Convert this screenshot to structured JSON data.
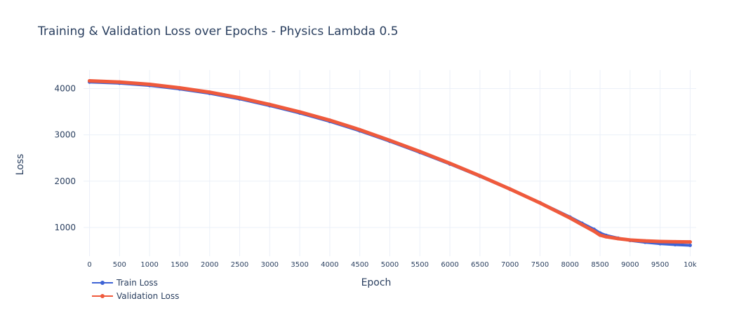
{
  "chart_data": {
    "type": "line",
    "title": "Training & Validation Loss over Epochs  - Physics Lambda 0.5",
    "xlabel": "Epoch",
    "ylabel": "Loss",
    "xlim": [
      -100,
      10100
    ],
    "ylim": [
      380,
      4400
    ],
    "x_ticks": [
      0,
      500,
      1000,
      1500,
      2000,
      2500,
      3000,
      3500,
      4000,
      4500,
      5000,
      5500,
      6000,
      6500,
      7000,
      7500,
      8000,
      8500,
      9000,
      9500,
      10000
    ],
    "x_tick_labels": [
      "0",
      "500",
      "1000",
      "1500",
      "2000",
      "2500",
      "3000",
      "3500",
      "4000",
      "4500",
      "5000",
      "5500",
      "6000",
      "6500",
      "7000",
      "7500",
      "8000",
      "8500",
      "9000",
      "9500",
      "10k"
    ],
    "y_ticks": [
      1000,
      2000,
      3000,
      4000
    ],
    "y_tick_labels": [
      "1000",
      "2000",
      "3000",
      "4000"
    ],
    "grid": true,
    "legend_position": "bottom-left",
    "x": [
      0,
      500,
      1000,
      1500,
      2000,
      2500,
      3000,
      3500,
      4000,
      4500,
      5000,
      5500,
      6000,
      6500,
      7000,
      7500,
      8000,
      8200,
      8400,
      8500,
      8600,
      8800,
      9000,
      9250,
      9500,
      9750,
      10000
    ],
    "series": [
      {
        "name": "Train Loss",
        "color": "#3e63d5",
        "values": [
          4140,
          4115,
          4065,
          3990,
          3895,
          3775,
          3630,
          3470,
          3290,
          3085,
          2860,
          2620,
          2370,
          2105,
          1825,
          1535,
          1225,
          1090,
          960,
          880,
          830,
          770,
          720,
          680,
          650,
          630,
          615
        ]
      },
      {
        "name": "Validation Loss",
        "color": "#ef5a3c",
        "values": [
          4165,
          4140,
          4090,
          4015,
          3920,
          3800,
          3655,
          3495,
          3315,
          3110,
          2880,
          2640,
          2385,
          2115,
          1830,
          1530,
          1205,
          1060,
          920,
          835,
          800,
          760,
          730,
          710,
          698,
          692,
          688
        ]
      }
    ]
  }
}
